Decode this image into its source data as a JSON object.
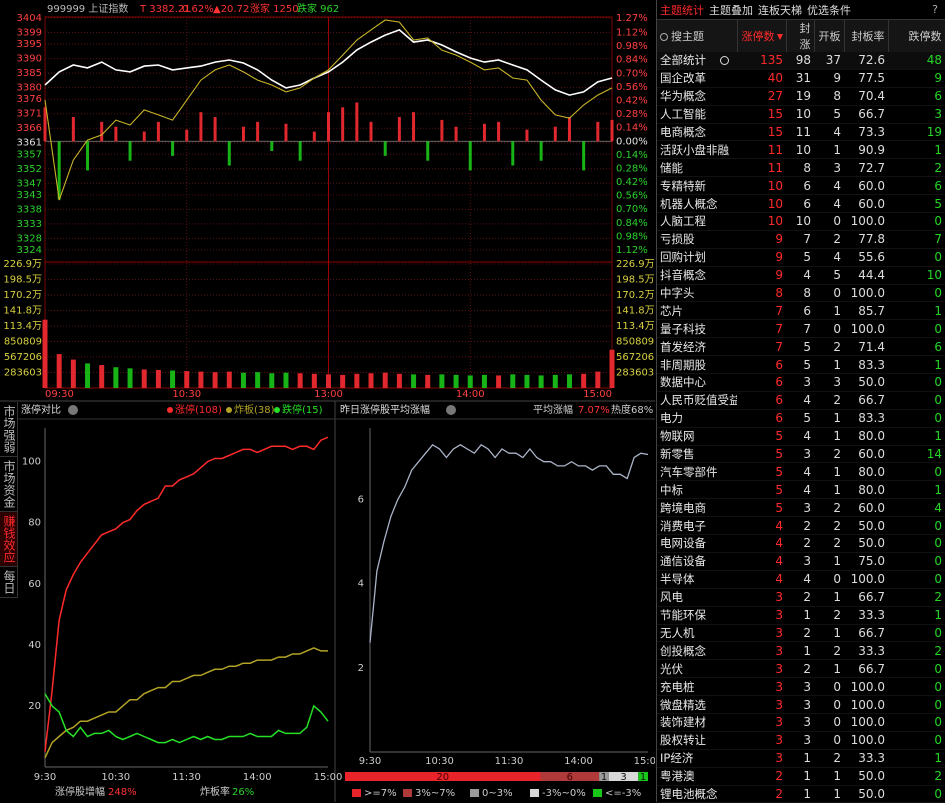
{
  "side_tabs": [
    "市场强弱",
    "市场资金",
    "赚钱效应",
    "每日"
  ],
  "chart_data": [
    {
      "type": "line",
      "title": "999999 上证指数",
      "info": [
        "T 3382.21",
        "0.62%",
        "▲20.72",
        "涨家 1250",
        "跌家 962"
      ],
      "x": [
        0,
        6,
        12,
        18,
        24,
        30,
        36,
        42,
        48,
        54,
        60,
        66,
        72,
        78,
        84,
        90,
        96,
        102,
        108,
        114,
        120,
        126,
        132,
        138,
        144,
        150,
        156,
        162,
        168,
        174,
        180,
        186,
        192,
        198,
        204,
        210,
        216,
        222,
        228,
        234,
        240
      ],
      "xlim": [
        0,
        240
      ],
      "xticks": [
        {
          "value": 0,
          "label": "09:30"
        },
        {
          "value": 60,
          "label": "10:30"
        },
        {
          "value": 120,
          "label": "13:00"
        },
        {
          "value": 180,
          "label": "14:00"
        },
        {
          "value": 240,
          "label": "15:00"
        }
      ],
      "ylim": [
        3324,
        3404
      ],
      "yticks": [
        3404,
        3399,
        3395,
        3390,
        3385,
        3380,
        3376,
        3371,
        3366,
        3361,
        3357,
        3352,
        3347,
        3343,
        3338,
        3333,
        3328,
        3324
      ],
      "y2lim": [
        -1.12,
        1.27
      ],
      "y2ticks": [
        {
          "value": 1.27,
          "label": "1.27%"
        },
        {
          "value": 1.12,
          "label": "1.12%"
        },
        {
          "value": 0.98,
          "label": "0.98%"
        },
        {
          "value": 0.84,
          "label": "0.84%"
        },
        {
          "value": 0.7,
          "label": "0.70%"
        },
        {
          "value": 0.56,
          "label": "0.56%"
        },
        {
          "value": 0.42,
          "label": "0.42%"
        },
        {
          "value": 0.28,
          "label": "0.28%"
        },
        {
          "value": 0.14,
          "label": "0.14%"
        },
        {
          "value": 0,
          "label": "0.00%"
        },
        {
          "value": -0.14,
          "label": "0.14%"
        },
        {
          "value": -0.28,
          "label": "0.28%"
        },
        {
          "value": -0.42,
          "label": "0.42%"
        },
        {
          "value": -0.56,
          "label": "0.56%"
        },
        {
          "value": -0.7,
          "label": "0.70%"
        },
        {
          "value": -0.84,
          "label": "0.84%"
        },
        {
          "value": -0.98,
          "label": "0.98%"
        },
        {
          "value": -1.12,
          "label": "1.12%"
        }
      ],
      "series": [
        {
          "color": "#ffffff",
          "values": [
            3380.9,
            3385.4,
            3387.8,
            3386.8,
            3388.8,
            3386.1,
            3385.4,
            3387.4,
            3387.8,
            3386.1,
            3386.8,
            3387.4,
            3388.8,
            3389.5,
            3388.5,
            3386.1,
            3382.6,
            3379.9,
            3380.9,
            3383.3,
            3385.4,
            3388.8,
            3393.0,
            3395.7,
            3398.1,
            3399.9,
            3395.7,
            3396.4,
            3394.7,
            3392.3,
            3390.2,
            3388.8,
            3389.5,
            3387.8,
            3386.1,
            3382.6,
            3379.2,
            3377.4,
            3378.5,
            3382.0,
            3383.3
          ]
        },
        {
          "color": "#c8b428",
          "values": [
            3375.7,
            3341.2,
            3355.0,
            3361.9,
            3363.7,
            3368.8,
            3367.1,
            3372.3,
            3370.6,
            3368.8,
            3375.7,
            3382.6,
            3386.1,
            3387.8,
            3385.4,
            3382.6,
            3380.9,
            3378.5,
            3379.9,
            3383.3,
            3386.1,
            3391.2,
            3396.4,
            3399.9,
            3403.3,
            3402.6,
            3396.4,
            3397.1,
            3392.9,
            3391.2,
            3388.8,
            3386.1,
            3386.8,
            3383.3,
            3382.6,
            3375.7,
            3370.6,
            3369.5,
            3374.0,
            3377.4,
            3379.9
          ]
        },
        {
          "type": "bar",
          "axis": "y2",
          "colors": [
            "#e0282e",
            "#17b317"
          ],
          "values": [
            0.35,
            -0.6,
            0.25,
            -0.3,
            0.2,
            0.15,
            -0.2,
            0.1,
            0.2,
            -0.15,
            0.12,
            0.3,
            0.25,
            -0.25,
            0.15,
            0.2,
            -0.1,
            0.18,
            -0.2,
            0.1,
            0.3,
            0.35,
            0.4,
            0.2,
            -0.15,
            0.25,
            0.3,
            -0.2,
            0.22,
            0.15,
            -0.3,
            0.18,
            0.2,
            -0.25,
            0.12,
            -0.2,
            0.15,
            0.25,
            -0.3,
            0.2,
            0.22
          ]
        }
      ]
    },
    {
      "type": "bar",
      "colors": [
        "#e0282e",
        "#17b317"
      ],
      "x": [
        0,
        6,
        12,
        18,
        24,
        30,
        36,
        42,
        48,
        54,
        60,
        66,
        72,
        78,
        84,
        90,
        96,
        102,
        108,
        114,
        120,
        126,
        132,
        138,
        144,
        150,
        156,
        162,
        168,
        174,
        180,
        186,
        192,
        198,
        204,
        210,
        216,
        222,
        228,
        234,
        240
      ],
      "xlim": [
        0,
        240
      ],
      "ylim": [
        0,
        2269000
      ],
      "yticks": [
        {
          "value": 2269000,
          "label": "226.9万"
        },
        {
          "value": 1985000,
          "label": "198.5万"
        },
        {
          "value": 1702000,
          "label": "170.2万"
        },
        {
          "value": 1418000,
          "label": "141.8万"
        },
        {
          "value": 1134000,
          "label": "113.4万"
        },
        850809,
        567206,
        283603
      ],
      "values": [
        1250000,
        620000,
        520000,
        450000,
        420000,
        380000,
        360000,
        340000,
        330000,
        320000,
        310000,
        300000,
        290000,
        300000,
        280000,
        290000,
        270000,
        280000,
        270000,
        260000,
        250000,
        240000,
        260000,
        270000,
        280000,
        260000,
        250000,
        240000,
        250000,
        240000,
        230000,
        240000,
        230000,
        250000,
        240000,
        230000,
        240000,
        250000,
        260000,
        300000,
        700000
      ]
    },
    {
      "type": "line",
      "title": "涨停对比",
      "footer": [
        "涨停股增幅",
        "248%",
        "炸板率",
        "26%"
      ],
      "x": [
        0,
        6,
        12,
        18,
        24,
        30,
        36,
        42,
        48,
        54,
        60,
        66,
        72,
        78,
        84,
        90,
        96,
        102,
        108,
        114,
        120,
        126,
        132,
        138,
        144,
        150,
        156,
        162,
        168,
        174,
        180,
        186,
        192,
        198,
        204,
        210,
        216,
        222,
        228,
        234,
        240
      ],
      "xlim": [
        0,
        240
      ],
      "xticks": [
        {
          "value": 0,
          "label": "9:30"
        },
        {
          "value": 60,
          "label": "10:30"
        },
        {
          "value": 120,
          "label": "11:30"
        },
        {
          "value": 180,
          "label": "14:00"
        },
        {
          "value": 240,
          "label": "15:00"
        }
      ],
      "ylim": [
        0,
        111
      ],
      "yticks": [
        20,
        40,
        60,
        80,
        100
      ],
      "series": [
        {
          "name": "涨停(108)",
          "color": "#ff2a2a",
          "values": [
            5,
            25,
            48,
            58,
            63,
            67,
            70,
            73,
            76,
            77,
            78,
            80,
            81,
            84,
            86,
            87,
            88,
            92,
            92,
            94,
            95,
            96,
            98,
            100,
            101,
            101,
            102,
            103,
            104,
            104,
            103,
            104,
            105,
            105,
            105,
            104,
            105,
            105,
            104,
            107,
            108
          ]
        },
        {
          "name": "炸板(38)",
          "color": "#b3a326",
          "values": [
            3,
            8,
            10,
            12,
            13,
            15,
            15,
            16,
            17,
            18,
            18,
            20,
            22,
            22,
            24,
            25,
            26,
            26,
            28,
            28,
            29,
            30,
            30,
            31,
            32,
            32,
            33,
            33,
            34,
            34,
            35,
            35,
            35,
            36,
            36,
            37,
            37,
            38,
            39,
            38,
            38
          ]
        },
        {
          "name": "跌停(15)",
          "color": "#25e025",
          "values": [
            24,
            20,
            18,
            12,
            10,
            13,
            10,
            11,
            11,
            12,
            10,
            9,
            10,
            11,
            10,
            9,
            8,
            8,
            9,
            8,
            9,
            10,
            9,
            10,
            9,
            9,
            10,
            10,
            10,
            11,
            10,
            10,
            10,
            12,
            11,
            11,
            11,
            13,
            20,
            18,
            15
          ]
        }
      ]
    },
    {
      "type": "line",
      "title": "昨日涨停股平均涨幅",
      "info": [
        "平均涨幅",
        "7.07%",
        "热度68%"
      ],
      "x": [
        0,
        6,
        12,
        18,
        24,
        30,
        36,
        42,
        48,
        54,
        60,
        66,
        72,
        78,
        84,
        90,
        96,
        102,
        108,
        114,
        120,
        126,
        132,
        138,
        144,
        150,
        156,
        162,
        168,
        174,
        180,
        186,
        192,
        198,
        204,
        210,
        216,
        222,
        228,
        234,
        240
      ],
      "xlim": [
        0,
        240
      ],
      "xticks": [
        {
          "value": 0,
          "label": "9:30"
        },
        {
          "value": 60,
          "label": "10:30"
        },
        {
          "value": 120,
          "label": "11:30"
        },
        {
          "value": 180,
          "label": "14:00"
        },
        {
          "value": 240,
          "label": "15:00"
        }
      ],
      "ylim": [
        0,
        7.7
      ],
      "yticks": [
        2,
        4,
        6
      ],
      "series": [
        {
          "color": "#aab4c8",
          "values": [
            2.6,
            4.3,
            5.0,
            5.6,
            6.0,
            6.3,
            6.7,
            6.9,
            7.1,
            7.3,
            7.2,
            7.0,
            7.2,
            7.3,
            7.2,
            7.1,
            7.3,
            7.2,
            7.0,
            7.2,
            7.1,
            7.1,
            7.0,
            7.2,
            7.0,
            6.9,
            6.9,
            6.8,
            6.8,
            6.9,
            6.8,
            6.8,
            6.7,
            6.8,
            6.8,
            6.6,
            6.6,
            6.5,
            7.0,
            7.1,
            7.07
          ]
        }
      ],
      "distribution": {
        "values": [
          20,
          6,
          1,
          3,
          1
        ],
        "labels": [
          ">=7%",
          "3%~7%",
          "0~3%",
          "-3%~0%",
          "<=-3%"
        ],
        "colors": [
          "#e8232a",
          "#b03a3a",
          "#9a9a9a",
          "#d8d8d8",
          "#18c818"
        ]
      }
    }
  ],
  "table": {
    "tabs": [
      "主题统计",
      "主题叠加",
      "连板天梯",
      "优选条件",
      "?"
    ],
    "columns": [
      "搜主题",
      "涨停数",
      "封涨",
      "开板",
      "封板率",
      "跌停数"
    ],
    "rows": [
      [
        "全部统计",
        135,
        98,
        37,
        "72.6",
        48
      ],
      [
        "国企改革",
        40,
        31,
        9,
        "77.5",
        9
      ],
      [
        "华为概念",
        27,
        19,
        8,
        "70.4",
        6
      ],
      [
        "人工智能",
        15,
        10,
        5,
        "66.7",
        3
      ],
      [
        "电商概念",
        15,
        11,
        4,
        "73.3",
        19
      ],
      [
        "活跃小盘非融",
        11,
        10,
        1,
        "90.9",
        1
      ],
      [
        "储能",
        11,
        8,
        3,
        "72.7",
        2
      ],
      [
        "专精特新",
        10,
        6,
        4,
        "60.0",
        6
      ],
      [
        "机器人概念",
        10,
        6,
        4,
        "60.0",
        5
      ],
      [
        "人脑工程",
        10,
        10,
        0,
        "100.0",
        0
      ],
      [
        "亏损股",
        9,
        7,
        2,
        "77.8",
        7
      ],
      [
        "回购计划",
        9,
        5,
        4,
        "55.6",
        0
      ],
      [
        "抖音概念",
        9,
        4,
        5,
        "44.4",
        10
      ],
      [
        "中字头",
        8,
        8,
        0,
        "100.0",
        0
      ],
      [
        "芯片",
        7,
        6,
        1,
        "85.7",
        1
      ],
      [
        "量子科技",
        7,
        7,
        0,
        "100.0",
        0
      ],
      [
        "首发经济",
        7,
        5,
        2,
        "71.4",
        6
      ],
      [
        "非周期股",
        6,
        5,
        1,
        "83.3",
        1
      ],
      [
        "数据中心",
        6,
        3,
        3,
        "50.0",
        0
      ],
      [
        "人民币贬值受益",
        6,
        4,
        2,
        "66.7",
        0
      ],
      [
        "电力",
        6,
        5,
        1,
        "83.3",
        0
      ],
      [
        "物联网",
        5,
        4,
        1,
        "80.0",
        1
      ],
      [
        "新零售",
        5,
        3,
        2,
        "60.0",
        14
      ],
      [
        "汽车零部件",
        5,
        4,
        1,
        "80.0",
        0
      ],
      [
        "中标",
        5,
        4,
        1,
        "80.0",
        1
      ],
      [
        "跨境电商",
        5,
        3,
        2,
        "60.0",
        4
      ],
      [
        "消费电子",
        4,
        2,
        2,
        "50.0",
        0
      ],
      [
        "电网设备",
        4,
        2,
        2,
        "50.0",
        0
      ],
      [
        "通信设备",
        4,
        3,
        1,
        "75.0",
        0
      ],
      [
        "半导体",
        4,
        4,
        0,
        "100.0",
        0
      ],
      [
        "风电",
        3,
        2,
        1,
        "66.7",
        2
      ],
      [
        "节能环保",
        3,
        1,
        2,
        "33.3",
        1
      ],
      [
        "无人机",
        3,
        2,
        1,
        "66.7",
        0
      ],
      [
        "创投概念",
        3,
        1,
        2,
        "33.3",
        2
      ],
      [
        "光伏",
        3,
        2,
        1,
        "66.7",
        0
      ],
      [
        "充电桩",
        3,
        3,
        0,
        "100.0",
        0
      ],
      [
        "微盘精选",
        3,
        3,
        0,
        "100.0",
        0
      ],
      [
        "装饰建材",
        3,
        3,
        0,
        "100.0",
        0
      ],
      [
        "股权转让",
        3,
        3,
        0,
        "100.0",
        0
      ],
      [
        "IP经济",
        3,
        1,
        2,
        "33.3",
        1
      ],
      [
        "粤港澳",
        2,
        1,
        1,
        "50.0",
        2
      ],
      [
        "锂电池概念",
        2,
        1,
        1,
        "50.0",
        0
      ]
    ]
  }
}
